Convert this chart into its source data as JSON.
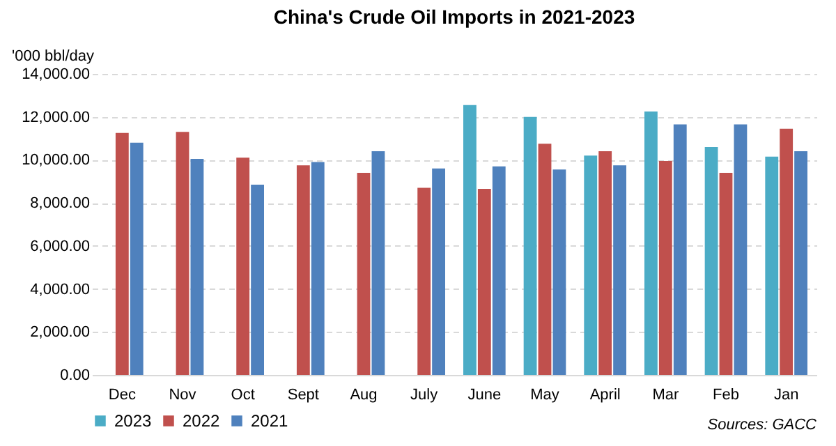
{
  "chart_data": {
    "type": "bar",
    "title": "China's Crude Oil Imports in 2021-2023",
    "ylabel": "'000 bbl/day",
    "categories": [
      "Dec",
      "Nov",
      "Oct",
      "Sept",
      "Aug",
      "July",
      "June",
      "May",
      "April",
      "Mar",
      "Feb",
      "Jan"
    ],
    "series": [
      {
        "name": "2023",
        "color": "#4bacc6",
        "values": [
          null,
          null,
          null,
          null,
          null,
          null,
          12550,
          12000,
          10200,
          12250,
          10600,
          10150
        ]
      },
      {
        "name": "2022",
        "color": "#c0504d",
        "values": [
          11250,
          11300,
          10100,
          9750,
          9400,
          8700,
          8650,
          10750,
          10400,
          9950,
          9400,
          11450
        ]
      },
      {
        "name": "2021",
        "color": "#4f81bd",
        "values": [
          10800,
          10050,
          8850,
          9900,
          10400,
          9600,
          9700,
          9550,
          9750,
          11650,
          11650,
          10400
        ]
      }
    ],
    "ylim": [
      0,
      14000
    ],
    "yticks": [
      {
        "value": 0,
        "label": "0.00"
      },
      {
        "value": 2000,
        "label": "2,000.00"
      },
      {
        "value": 4000,
        "label": "4,000.00"
      },
      {
        "value": 6000,
        "label": "6,000.00"
      },
      {
        "value": 8000,
        "label": "8,000.00"
      },
      {
        "value": 10000,
        "label": "10,000.00"
      },
      {
        "value": 12000,
        "label": "12,000.00"
      },
      {
        "value": 14000,
        "label": "14,000.00"
      }
    ],
    "grid": "y",
    "legend": "bottom",
    "annotations": [
      "Sources: GACC"
    ]
  }
}
